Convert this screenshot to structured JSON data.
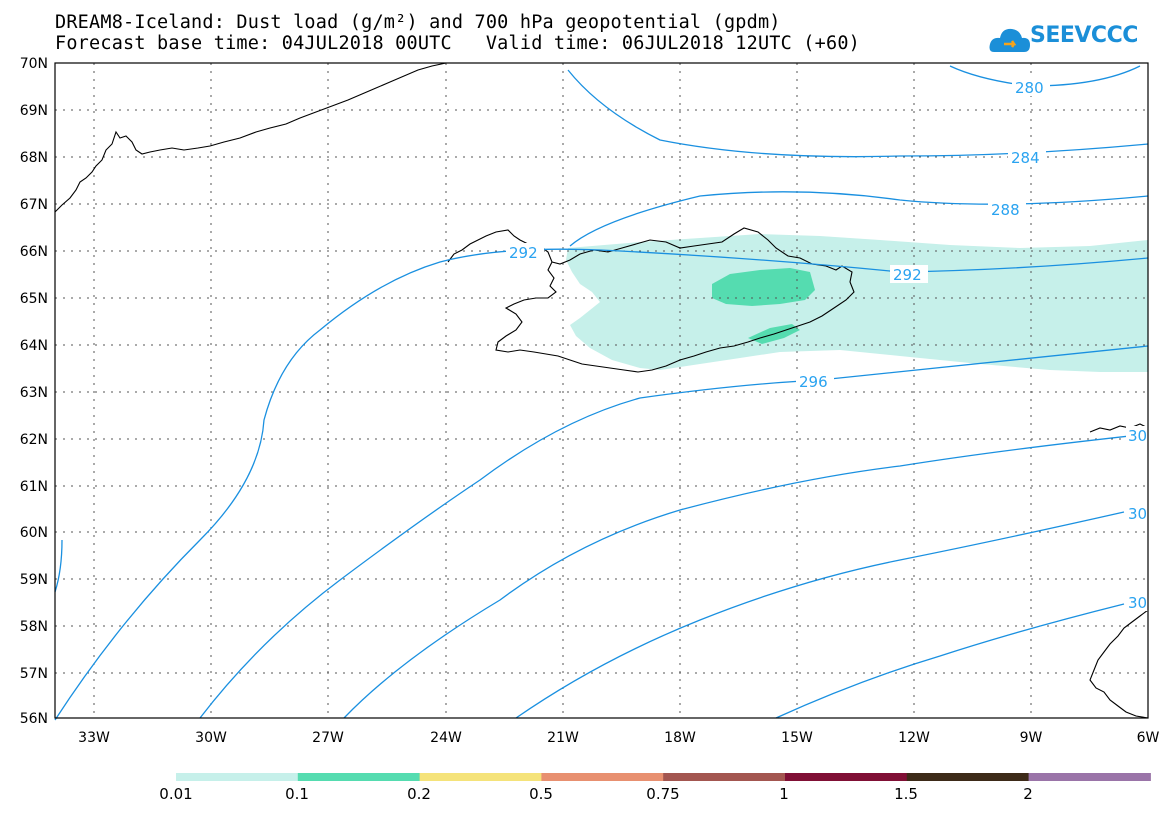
{
  "title": {
    "line1": "DREAM8-Iceland: Dust load (g/m²) and 700 hPa geopotential (gpdm)",
    "line2": "Forecast base time: 04JUL2018 00UTC   Valid time: 06JUL2018 12UTC (+60)"
  },
  "logo": {
    "text": "SEEVCCC"
  },
  "map": {
    "lat_labels": [
      "70N",
      "69N",
      "68N",
      "67N",
      "66N",
      "65N",
      "64N",
      "63N",
      "62N",
      "61N",
      "60N",
      "59N",
      "58N",
      "57N",
      "56N"
    ],
    "lon_labels": [
      "33W",
      "30W",
      "27W",
      "24W",
      "21W",
      "18W",
      "15W",
      "12W",
      "9W",
      "6W"
    ],
    "contour_labels": [
      "280",
      "284",
      "288",
      "292",
      "292",
      "296",
      "30",
      "30",
      "30"
    ]
  },
  "colorbar": {
    "labels": [
      "0.01",
      "0.1",
      "0.2",
      "0.5",
      "0.75",
      "1",
      "1.5",
      "2"
    ],
    "colors": [
      "#c6f0ea",
      "#55dcb0",
      "#f5e37a",
      "#e89070",
      "#a35650",
      "#800f35",
      "#3d2a18",
      "#9a74a8"
    ]
  }
}
